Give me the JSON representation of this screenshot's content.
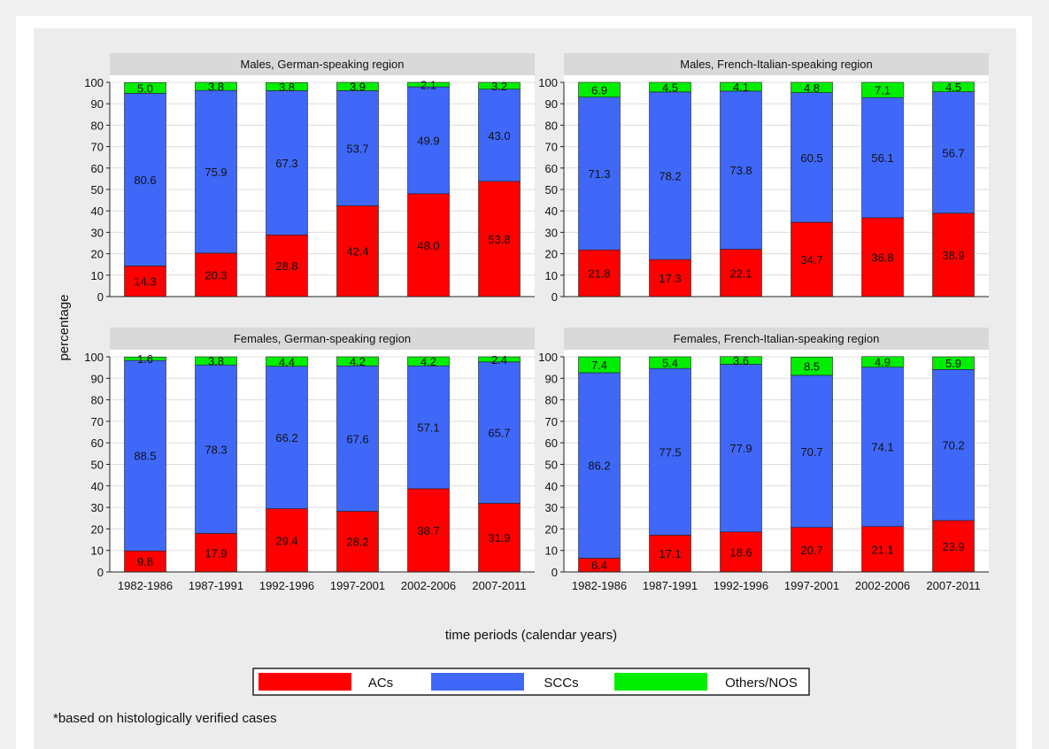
{
  "chart_data": {
    "type": "bar",
    "stacked": true,
    "ylabel": "percentage",
    "xlabel": "time periods (calendar years)",
    "ylim": [
      0,
      100
    ],
    "yticks": [
      0,
      10,
      20,
      30,
      40,
      50,
      60,
      70,
      80,
      90,
      100
    ],
    "categories": [
      "1982-1986",
      "1987-1991",
      "1992-1996",
      "1997-2001",
      "2002-2006",
      "2007-2011"
    ],
    "legend": {
      "placement": "bottom",
      "entries": [
        {
          "name": "ACs",
          "color": "#ff0000"
        },
        {
          "name": "SCCs",
          "color": "#3f68f9"
        },
        {
          "name": "Others/NOS",
          "color": "#00ee00"
        }
      ]
    },
    "footnote": "*based on histologically verified cases",
    "panels": [
      {
        "title": "Males, German-speaking region",
        "series": [
          {
            "name": "ACs",
            "values": [
              14.3,
              20.3,
              28.8,
              42.4,
              48.0,
              53.8
            ]
          },
          {
            "name": "SCCs",
            "values": [
              80.6,
              75.9,
              67.3,
              53.7,
              49.9,
              43.0
            ]
          },
          {
            "name": "Others/NOS",
            "values": [
              5.0,
              3.8,
              3.8,
              3.9,
              2.1,
              3.2
            ]
          }
        ]
      },
      {
        "title": "Males, French-Italian-speaking region",
        "series": [
          {
            "name": "ACs",
            "values": [
              21.8,
              17.3,
              22.1,
              34.7,
              36.8,
              38.9
            ]
          },
          {
            "name": "SCCs",
            "values": [
              71.3,
              78.2,
              73.8,
              60.5,
              56.1,
              56.7
            ]
          },
          {
            "name": "Others/NOS",
            "values": [
              6.9,
              4.5,
              4.1,
              4.8,
              7.1,
              4.5
            ]
          }
        ]
      },
      {
        "title": "Females, German-speaking region",
        "series": [
          {
            "name": "ACs",
            "values": [
              9.8,
              17.9,
              29.4,
              28.2,
              38.7,
              31.9
            ]
          },
          {
            "name": "SCCs",
            "values": [
              88.5,
              78.3,
              66.2,
              67.6,
              57.1,
              65.7
            ]
          },
          {
            "name": "Others/NOS",
            "values": [
              1.6,
              3.8,
              4.4,
              4.2,
              4.2,
              2.4
            ]
          }
        ]
      },
      {
        "title": "Females, French-Italian-speaking region",
        "series": [
          {
            "name": "ACs",
            "values": [
              6.4,
              17.1,
              18.6,
              20.7,
              21.1,
              23.9
            ]
          },
          {
            "name": "SCCs",
            "values": [
              86.2,
              77.5,
              77.9,
              70.7,
              74.1,
              70.2
            ]
          },
          {
            "name": "Others/NOS",
            "values": [
              7.4,
              5.4,
              3.6,
              8.5,
              4.9,
              5.9
            ]
          }
        ]
      }
    ]
  }
}
